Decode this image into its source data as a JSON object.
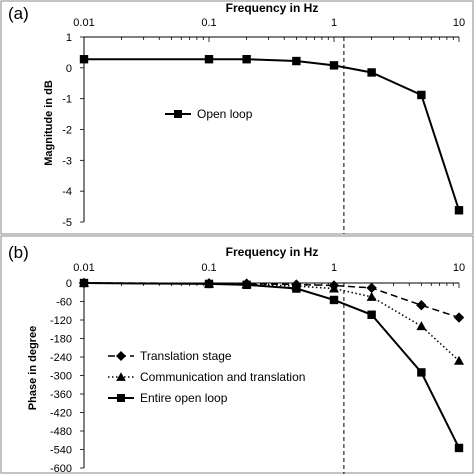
{
  "chart_data": [
    {
      "panel": "(a)",
      "type": "line",
      "xlabel": "Frequency in Hz",
      "ylabel": "Magnitude in dB",
      "xscale": "log",
      "xlim": [
        0.01,
        10
      ],
      "xticks": [
        0.01,
        0.1,
        1,
        10
      ],
      "xtick_labels": [
        "0.01",
        "0.1",
        "1",
        "10"
      ],
      "ylim": [
        -5,
        1
      ],
      "yticks": [
        1,
        0,
        -1,
        -2,
        -3,
        -4,
        -5
      ],
      "vline_x": 1.2,
      "grid": false,
      "legend_position": "center-left",
      "series": [
        {
          "name": "Open loop",
          "marker": "square",
          "line": "solid",
          "x": [
            0.01,
            0.1,
            0.2,
            0.5,
            1,
            2,
            5,
            10
          ],
          "y": [
            0.28,
            0.28,
            0.28,
            0.22,
            0.08,
            -0.15,
            -0.88,
            -4.62
          ]
        }
      ]
    },
    {
      "panel": "(b)",
      "type": "line",
      "xlabel": "Frequency in Hz",
      "ylabel": "Phase in degree",
      "xscale": "log",
      "xlim": [
        0.01,
        10
      ],
      "xticks": [
        0.01,
        0.1,
        1,
        10
      ],
      "xtick_labels": [
        "0.01",
        "0.1",
        "1",
        "10"
      ],
      "ylim": [
        -600,
        0
      ],
      "yticks": [
        0,
        -60,
        -120,
        -180,
        -240,
        -300,
        -360,
        -420,
        -480,
        -540,
        -600
      ],
      "vline_x": 1.2,
      "grid": false,
      "legend_position": "center-left",
      "series": [
        {
          "name": "Translation stage",
          "marker": "diamond",
          "line": "dashed",
          "x": [
            0.01,
            0.1,
            0.2,
            0.5,
            1,
            2,
            5,
            10
          ],
          "y": [
            0,
            -1,
            -2,
            -5,
            -8,
            -16,
            -72,
            -112
          ]
        },
        {
          "name": "Communication and translation",
          "marker": "triangle",
          "line": "dotted",
          "x": [
            0.01,
            0.1,
            0.2,
            0.5,
            1,
            2,
            5,
            10
          ],
          "y": [
            0,
            -2,
            -4,
            -10,
            -18,
            -45,
            -140,
            -252
          ]
        },
        {
          "name": "Entire open loop",
          "marker": "square",
          "line": "solid",
          "x": [
            0.01,
            0.1,
            0.2,
            0.5,
            1,
            2,
            5,
            10
          ],
          "y": [
            0,
            -3,
            -6,
            -18,
            -55,
            -103,
            -290,
            -535
          ]
        }
      ]
    }
  ]
}
